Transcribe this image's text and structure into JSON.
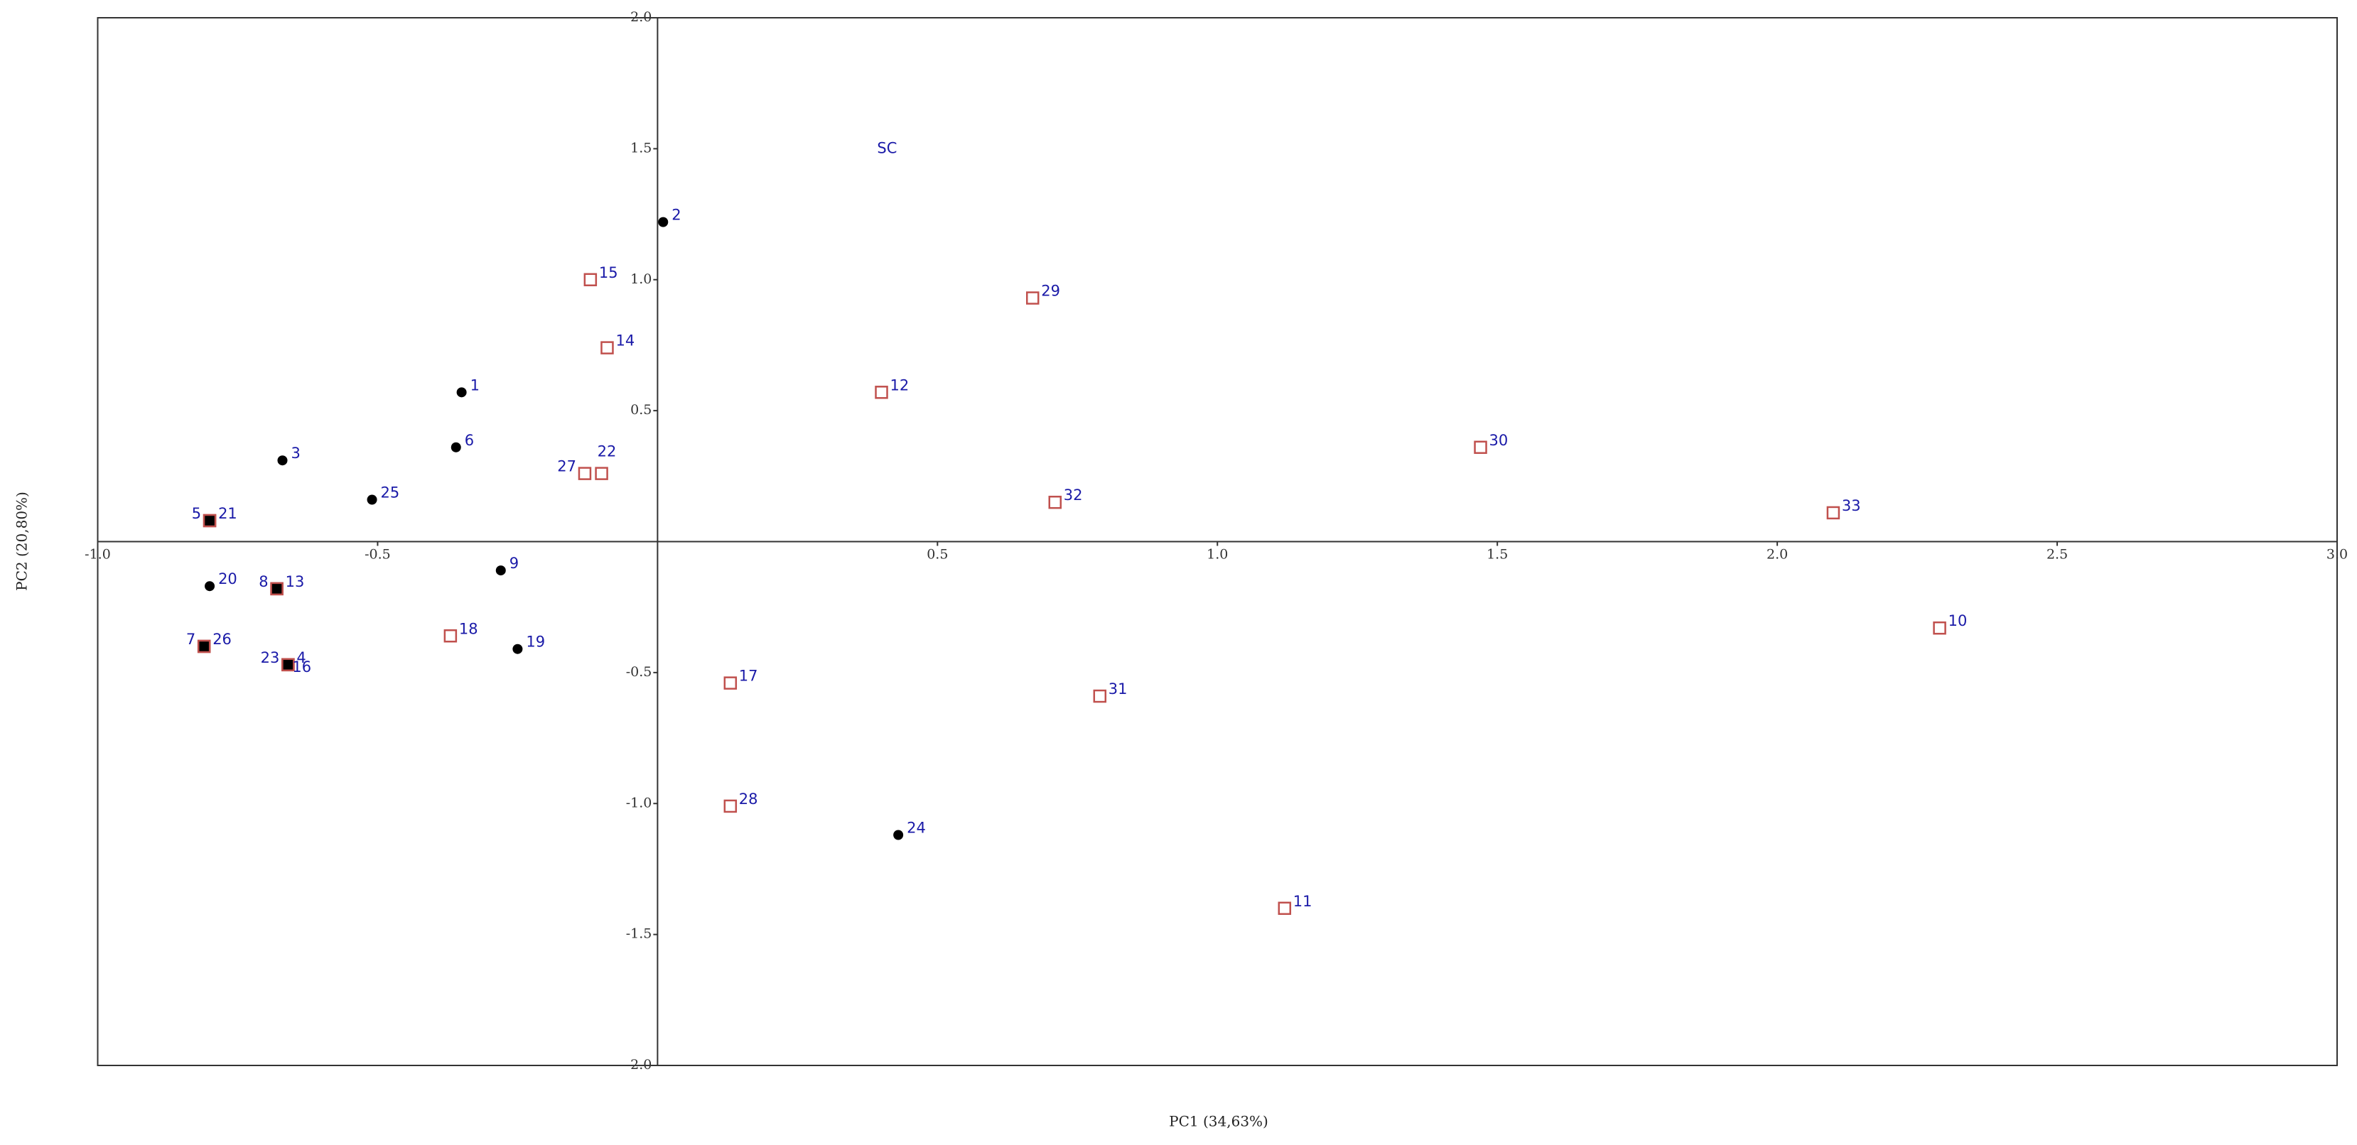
{
  "chart_data": {
    "type": "scatter",
    "xlabel": "PC1 (34,63%)",
    "ylabel": "PC2 (20,80%)",
    "xlim": [
      -1,
      3
    ],
    "ylim": [
      -2,
      2
    ],
    "xticks": [
      {
        "value": -1,
        "label": "-1.0"
      },
      -0.5,
      0.5,
      {
        "value": 1,
        "label": "1.0"
      },
      1.5,
      {
        "value": 2,
        "label": "2.0"
      },
      2.5,
      {
        "value": 3,
        "label": "3.0"
      }
    ],
    "yticks": [
      {
        "value": 2,
        "label": "2.0"
      },
      1.5,
      {
        "value": 1,
        "label": "1.0"
      },
      0.5,
      -0.5,
      {
        "value": -1,
        "label": "-1.0"
      },
      -1.5,
      {
        "value": -2,
        "label": "-2.0"
      }
    ],
    "circle_color": "#000000",
    "square_color": "#c0504d",
    "label_color": "#1a1aa8",
    "points": [
      {
        "label": "2",
        "x": 0.01,
        "y": 1.22,
        "marker": "circle"
      },
      {
        "label": "15",
        "x": -0.12,
        "y": 1.0,
        "marker": "square"
      },
      {
        "label": "14",
        "x": -0.09,
        "y": 0.74,
        "marker": "square"
      },
      {
        "label": "1",
        "x": -0.35,
        "y": 0.57,
        "marker": "circle"
      },
      {
        "label": "6",
        "x": -0.36,
        "y": 0.36,
        "marker": "circle"
      },
      {
        "label": "3",
        "x": -0.67,
        "y": 0.31,
        "marker": "circle"
      },
      {
        "label": "25",
        "x": -0.51,
        "y": 0.16,
        "marker": "circle"
      },
      {
        "label": "27",
        "x": -0.13,
        "y": 0.26,
        "marker": "square"
      },
      {
        "label": "22",
        "x": -0.1,
        "y": 0.26,
        "marker": "square"
      },
      {
        "label": "5",
        "x": -0.8,
        "y": 0.08,
        "marker": "filled-square"
      },
      {
        "label": "21",
        "x": -0.8,
        "y": 0.08,
        "marker": "filled-square"
      },
      {
        "label": "20",
        "x": -0.8,
        "y": -0.17,
        "marker": "circle"
      },
      {
        "label": "8",
        "x": -0.68,
        "y": -0.18,
        "marker": "filled-square"
      },
      {
        "label": "13",
        "x": -0.68,
        "y": -0.18,
        "marker": "filled-square"
      },
      {
        "label": "7",
        "x": -0.81,
        "y": -0.4,
        "marker": "filled-square"
      },
      {
        "label": "26",
        "x": -0.81,
        "y": -0.4,
        "marker": "filled-square"
      },
      {
        "label": "23",
        "x": -0.66,
        "y": -0.47,
        "marker": "filled-square"
      },
      {
        "label": "4",
        "x": -0.66,
        "y": -0.47,
        "marker": "filled-square"
      },
      {
        "label": "16",
        "x": -0.66,
        "y": -0.47,
        "marker": "filled-square"
      },
      {
        "label": "18",
        "x": -0.37,
        "y": -0.36,
        "marker": "square"
      },
      {
        "label": "9",
        "x": -0.28,
        "y": -0.11,
        "marker": "circle"
      },
      {
        "label": "19",
        "x": -0.25,
        "y": -0.41,
        "marker": "circle"
      },
      {
        "label": "17",
        "x": 0.13,
        "y": -0.54,
        "marker": "square"
      },
      {
        "label": "28",
        "x": 0.13,
        "y": -1.01,
        "marker": "square"
      },
      {
        "label": "24",
        "x": 0.43,
        "y": -1.12,
        "marker": "circle"
      },
      {
        "label": "29",
        "x": 0.67,
        "y": 0.93,
        "marker": "square"
      },
      {
        "label": "12",
        "x": 0.4,
        "y": 0.57,
        "marker": "square"
      },
      {
        "label": "32",
        "x": 0.71,
        "y": 0.15,
        "marker": "square"
      },
      {
        "label": "31",
        "x": 0.79,
        "y": -0.59,
        "marker": "square"
      },
      {
        "label": "11",
        "x": 1.12,
        "y": -1.4,
        "marker": "square"
      },
      {
        "label": "30",
        "x": 1.47,
        "y": 0.36,
        "marker": "square"
      },
      {
        "label": "33",
        "x": 2.1,
        "y": 0.11,
        "marker": "square"
      },
      {
        "label": "10",
        "x": 2.29,
        "y": -0.33,
        "marker": "square"
      },
      {
        "label": "SC",
        "x": 0.41,
        "y": 1.5,
        "marker": "none"
      }
    ]
  }
}
